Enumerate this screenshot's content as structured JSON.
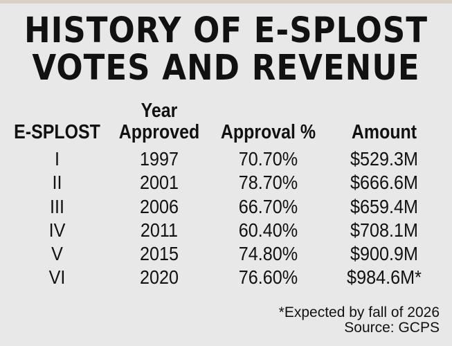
{
  "title": {
    "line1": "HISTORY OF E-SPLOST",
    "line2": "VOTES AND REVENUE"
  },
  "table": {
    "headers": [
      "E-SPLOST",
      "Year Approved",
      "Approval %",
      "Amount"
    ],
    "rows": [
      [
        "I",
        "1997",
        "70.70%",
        "$529.3M"
      ],
      [
        "II",
        "2001",
        "78.70%",
        "$666.6M"
      ],
      [
        "III",
        "2006",
        "66.70%",
        "$659.4M"
      ],
      [
        "IV",
        "2011",
        "60.40%",
        "$708.1M"
      ],
      [
        "V",
        "2015",
        "74.80%",
        "$900.9M"
      ],
      [
        "VI",
        "2020",
        "76.60%",
        "$984.6M*"
      ]
    ]
  },
  "footer": {
    "note": "*Expected by fall of 2026",
    "source": "Source: GCPS"
  }
}
